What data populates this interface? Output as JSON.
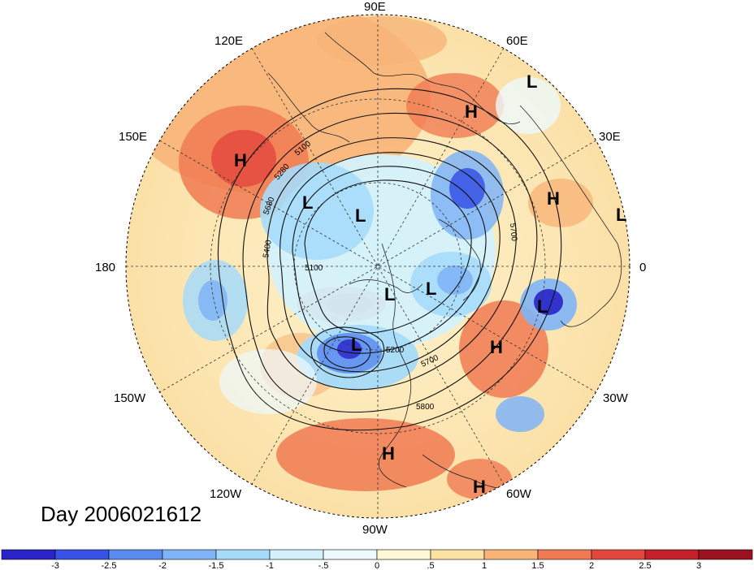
{
  "title": "Day 2006021612",
  "longitude_labels": [
    {
      "text": "90E",
      "angle": 90
    },
    {
      "text": "60E",
      "angle": 60
    },
    {
      "text": "30E",
      "angle": 30
    },
    {
      "text": "0",
      "angle": 0
    },
    {
      "text": "30W",
      "angle": -30
    },
    {
      "text": "60W",
      "angle": -60
    },
    {
      "text": "90W",
      "angle": -90
    },
    {
      "text": "120W",
      "angle": -120
    },
    {
      "text": "150W",
      "angle": -150
    },
    {
      "text": "180",
      "angle": 180
    },
    {
      "text": "150E",
      "angle": 150
    },
    {
      "text": "120E",
      "angle": 120
    }
  ],
  "pressure_centers": [
    {
      "type": "H",
      "lon": "120E-ish NE Asia",
      "rx": -0.542,
      "ry": 0.438
    },
    {
      "type": "L",
      "rx": -0.285,
      "ry": 0.262
    },
    {
      "type": "L",
      "rx": -0.06,
      "ry": 0.21
    },
    {
      "type": "H",
      "rx": 0.39,
      "ry": 0.63
    },
    {
      "type": "L",
      "rx": 0.64,
      "ry": 0.78
    },
    {
      "type": "H",
      "rx": 0.72,
      "ry": 0.28
    },
    {
      "type": "L",
      "rx": 1.0,
      "ry": 0.2
    },
    {
      "type": "L",
      "rx": 0.06,
      "ry": -0.11
    },
    {
      "type": "L",
      "rx": 0.22,
      "ry": -0.085
    },
    {
      "type": "L",
      "rx": 0.68,
      "ry": -0.16
    },
    {
      "type": "L",
      "rx": -0.1,
      "ry": -0.33
    },
    {
      "type": "H",
      "rx": 0.5,
      "ry": -0.33
    },
    {
      "type": "H",
      "rx": 0.05,
      "ry": -0.77
    },
    {
      "type": "H",
      "rx": 0.42,
      "ry": -0.91
    }
  ],
  "contour_labels": [
    "5100",
    "5280",
    "5400",
    "5680",
    "5700",
    "5100",
    "5200",
    "5700",
    "5800"
  ],
  "colorbar": {
    "ticks": [
      "-3",
      "-2.5",
      "-2",
      "-1.5",
      "-1",
      "-.5",
      "0",
      ".5",
      "1",
      "1.5",
      "2",
      "2.5",
      "3"
    ],
    "colors": [
      "#2a23c9",
      "#3752e5",
      "#5a8bf0",
      "#7fb4f6",
      "#a6dbf9",
      "#d4f1fb",
      "#eefafd",
      "#fef8d6",
      "#fbe2a3",
      "#f8b478",
      "#f07a52",
      "#e3473c",
      "#c41f2a",
      "#9b1120"
    ]
  }
}
